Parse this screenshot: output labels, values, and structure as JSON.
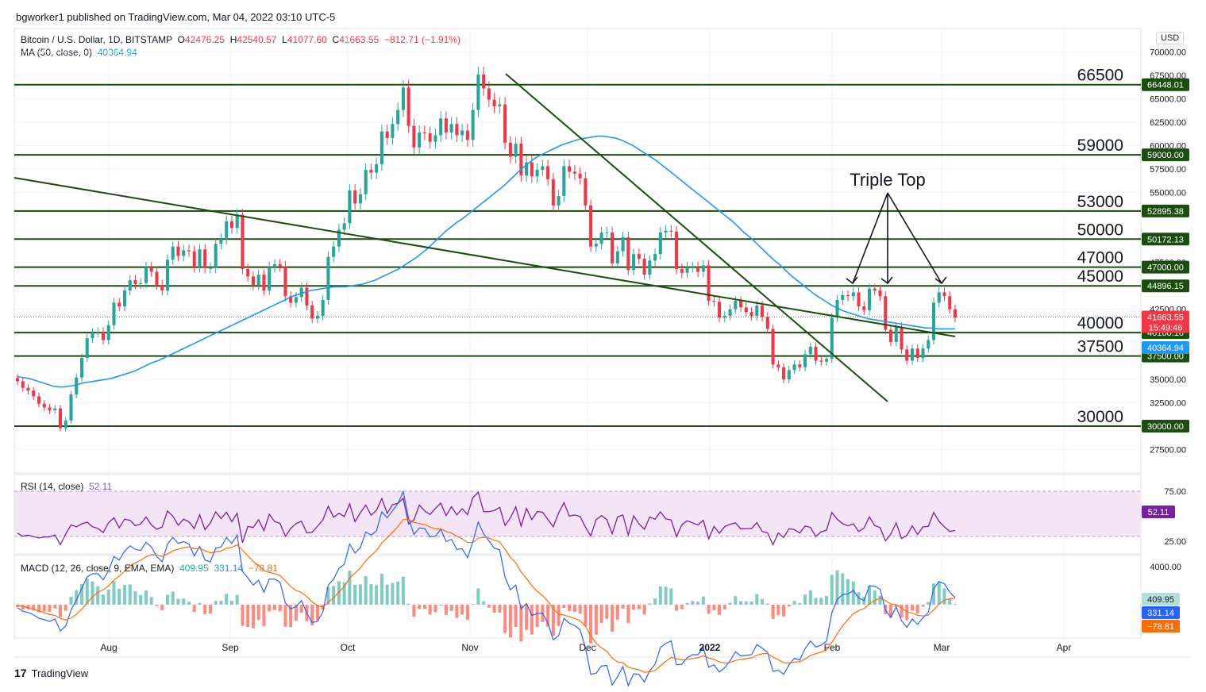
{
  "header": {
    "publisher": "bgworker1 published on TradingView.com, Mar 04, 2022 03:10 UTC-5"
  },
  "legend": {
    "symbol": "Bitcoin / U.S. Dollar, 1D, BITSTAMP",
    "o_label": "O",
    "o": "42476.25",
    "h_label": "H",
    "h": "42540.57",
    "l_label": "L",
    "l": "41077.60",
    "c_label": "C",
    "c": "41663.55",
    "change": "−812.71 (−1.91%)",
    "ma_label": "MA (50, close, 0)",
    "ma_value": "40364.94"
  },
  "rsi_legend": {
    "label": "RSI (14, close)",
    "value": "52.11"
  },
  "macd_legend": {
    "label": "MACD (12, 26, close, 9, EMA, EMA)",
    "hist": "409.95",
    "macd": "331.14",
    "signal": "−78.81"
  },
  "currency": "USD",
  "footer": {
    "brand": "TradingView"
  },
  "colors": {
    "up": "#26a69a",
    "down": "#f23645",
    "ma": "#2196f3",
    "lines": "#1b4d0f",
    "rsi": "#7b1fa2",
    "rsi_band": "#f3e5f5",
    "macd": "#2962ff",
    "signal": "#ff6d00"
  },
  "chart_data": {
    "type": "candlestick",
    "x_labels": [
      "Aug",
      "Sep",
      "Oct",
      "Nov",
      "Dec",
      "2022",
      "Feb",
      "Mar",
      "Apr"
    ],
    "price_ticks": [
      "70000.00",
      "67500.00",
      "65000.00",
      "62500.00",
      "60000.00",
      "57500.00",
      "55000.00",
      "47500.00",
      "42500.00",
      "35000.00",
      "32500.00",
      "27500.00"
    ],
    "ylim": [
      25000,
      72500
    ],
    "horizontal_levels": [
      {
        "value": 66500,
        "label": "66500",
        "tag": "66448.01"
      },
      {
        "value": 59000,
        "label": "59000",
        "tag": "59000.00"
      },
      {
        "value": 53000,
        "label": "53000",
        "tag": "52895.38"
      },
      {
        "value": 50000,
        "label": "50000",
        "tag": "50172.13"
      },
      {
        "value": 47000,
        "label": "47000",
        "tag": "47000.00"
      },
      {
        "value": 45000,
        "label": "45000",
        "tag": "44896.15"
      },
      {
        "value": 40000,
        "label": "40000",
        "tag": "40100.16"
      },
      {
        "value": 37500,
        "label": "37500",
        "tag": "37500.00"
      },
      {
        "value": 30000,
        "label": "30000",
        "tag": "30000.00"
      }
    ],
    "last_price_tag": "41663.55",
    "countdown": "15:49:46",
    "ma_tag": "40364.94",
    "annotation": "Triple Top",
    "rsi_ticks": [
      "75.00",
      "25.00"
    ],
    "rsi_tag": "52.11",
    "macd_ticks": [
      "4000.00"
    ],
    "macd_tags": [
      "409.95",
      "331.14",
      "−78.81"
    ],
    "candles_close": [
      34800,
      34100,
      33800,
      33200,
      32400,
      32000,
      31700,
      31900,
      29800,
      30600,
      33400,
      35200,
      37300,
      39400,
      40000,
      40100,
      39200,
      40800,
      43200,
      42800,
      44500,
      45600,
      45200,
      45300,
      47000,
      46500,
      45100,
      44500,
      47800,
      49200,
      48200,
      48800,
      48700,
      47000,
      48900,
      46900,
      46900,
      49500,
      50000,
      51900,
      51200,
      52600,
      46800,
      46000,
      45100,
      46200,
      44500,
      47000,
      47300,
      47100,
      43900,
      43200,
      43800,
      44800,
      42900,
      41500,
      41800,
      43500,
      48100,
      49200,
      51000,
      51700,
      55200,
      53800,
      54800,
      57400,
      57100,
      58000,
      61500,
      60800,
      62300,
      63800,
      66200,
      62100,
      59800,
      61400,
      61300,
      60400,
      61100,
      62900,
      61400,
      62300,
      61100,
      61600,
      60600,
      63800,
      67600,
      66100,
      64900,
      64200,
      64400,
      60300,
      58800,
      60200,
      56800,
      58200,
      56700,
      57400,
      57800,
      56400,
      53600,
      54600,
      57800,
      57200,
      57000,
      56500,
      53600,
      49200,
      49500,
      50700,
      50700,
      47400,
      48700,
      50200,
      46700,
      48400,
      47900,
      46200,
      47700,
      48400,
      50700,
      50900,
      50800,
      46800,
      46400,
      47000,
      47000,
      46500,
      47200,
      43400,
      43300,
      41600,
      41800,
      42500,
      43400,
      42700,
      42200,
      41800,
      42900,
      41700,
      40400,
      36600,
      36300,
      35000,
      36000,
      36600,
      36300,
      37700,
      38500,
      37000,
      36900,
      37200,
      41600,
      43500,
      44000,
      43900,
      44300,
      42800,
      42400,
      44700,
      44500,
      43900,
      40300,
      39000,
      40600,
      38200,
      37000,
      38300,
      37300,
      38300,
      39200,
      43200,
      44300,
      43900,
      42500,
      41600
    ],
    "ma50_points": [
      35300,
      35200,
      35100,
      34900,
      34700,
      34500,
      34300,
      34200,
      34200,
      34300,
      34400,
      34600,
      34700,
      34800,
      34900,
      35000,
      35100,
      35300,
      35500,
      35700,
      35900,
      36200,
      36500,
      36800,
      37000,
      37300,
      37600,
      37900,
      38200,
      38500,
      38800,
      39100,
      39400,
      39700,
      40000,
      40300,
      40600,
      40900,
      41200,
      41500,
      41800,
      42100,
      42400,
      42700,
      43000,
      43300,
      43600,
      43900,
      44100,
      44300,
      44500,
      44600,
      44700,
      44800,
      44900,
      44900,
      44900,
      45000,
      45100,
      45200,
      45400,
      45600,
      45900,
      46200,
      46500,
      46800,
      47200,
      47600,
      48000,
      48500,
      49000,
      49600,
      50200,
      50800,
      51300,
      51800,
      52200,
      52700,
      53200,
      53700,
      54200,
      54700,
      55200,
      55700,
      56300,
      56900,
      57500,
      58000,
      58500,
      58900,
      59200,
      59500,
      59800,
      60100,
      60300,
      60500,
      60700,
      60800,
      60900,
      61000,
      61000,
      60900,
      60800,
      60600,
      60300,
      60000,
      59600,
      59200,
      58800,
      58400,
      57900,
      57400,
      56900,
      56400,
      55900,
      55400,
      54900,
      54400,
      53900,
      53400,
      52900,
      52400,
      51900,
      51300,
      50700,
      50200,
      49600,
      49000,
      48400,
      47800,
      47300,
      46700,
      46100,
      45600,
      45100,
      44600,
      44100,
      43700,
      43300,
      42900,
      42600,
      42300,
      42100,
      41900,
      41700,
      41500,
      41400,
      41300,
      41200,
      41100,
      41000,
      40900,
      40800,
      40700,
      40600,
      40500,
      40500,
      40400,
      40400,
      40400,
      40400
    ]
  }
}
